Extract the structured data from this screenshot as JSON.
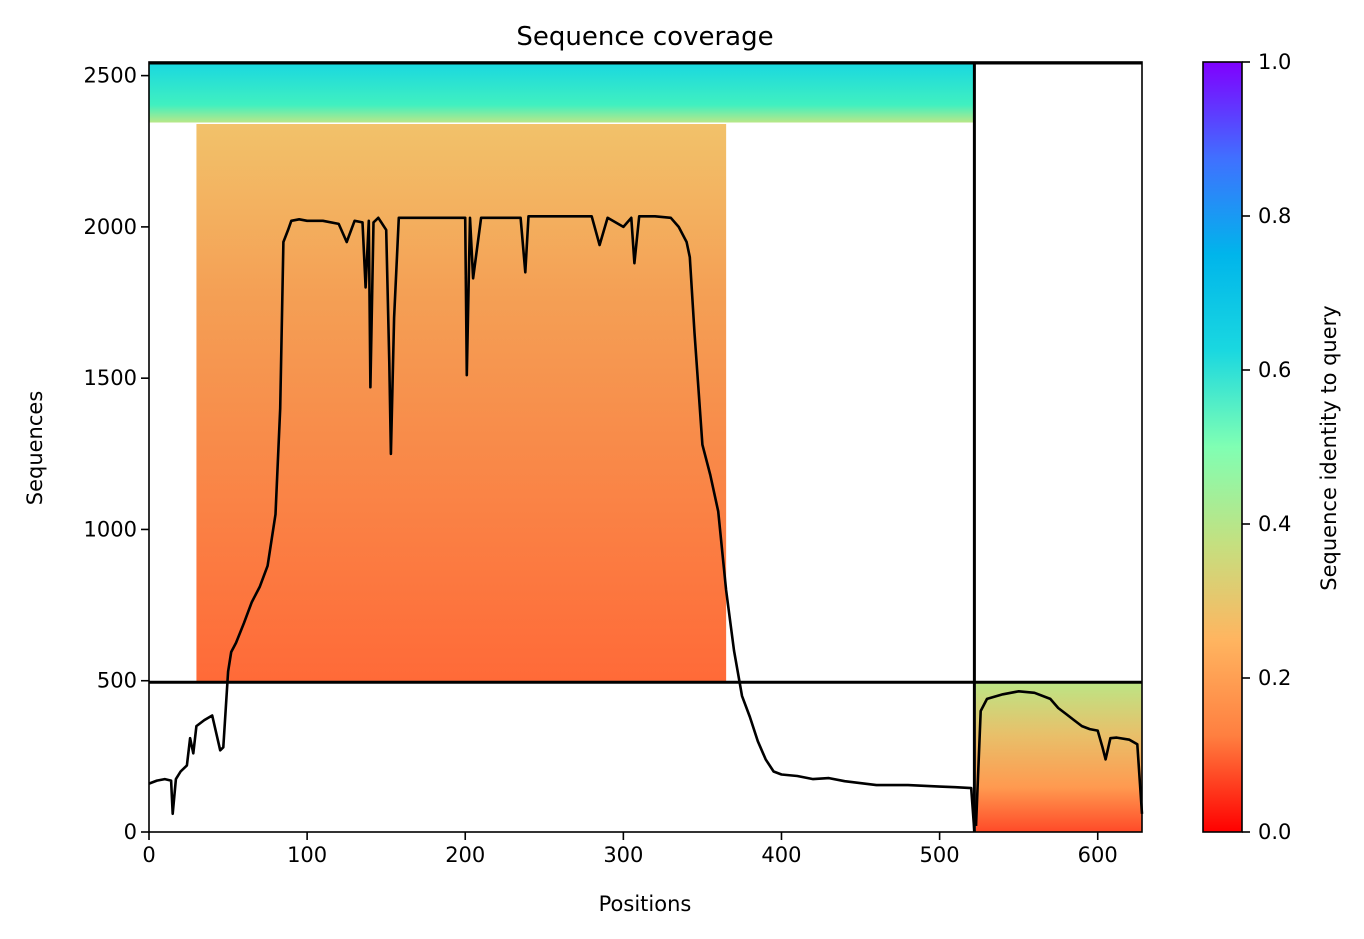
{
  "chart_data": {
    "type": "heatmap",
    "title": "Sequence coverage",
    "xlabel": "Positions",
    "ylabel": "Sequences",
    "xlim": [
      0,
      628
    ],
    "ylim": [
      0,
      2545
    ],
    "xticks": [
      0,
      100,
      200,
      300,
      400,
      500,
      600
    ],
    "yticks": [
      0,
      500,
      1000,
      1500,
      2000,
      2500
    ],
    "chain_boundary_position": 522,
    "region_boundary_sequences": 495,
    "colorbar": {
      "label": "Sequence identity to query",
      "range": [
        0,
        1
      ],
      "ticks": [
        "0.0",
        "0.2",
        "0.4",
        "0.6",
        "0.8",
        "1.0"
      ],
      "colormap": "rainbow_r",
      "colors": [
        "#ff0000",
        "#ff7f40",
        "#ffb560",
        "#c4e080",
        "#80ffb3",
        "#1ad8e0",
        "#00b5eb",
        "#4070ff",
        "#8000ff"
      ]
    },
    "coverage_blocks": [
      {
        "x_start": 0,
        "x_end": 522,
        "y_start": 2345,
        "y_end": 2540,
        "identity": 0.6
      },
      {
        "x_start": 30,
        "x_end": 365,
        "y_start": 495,
        "y_end": 2340,
        "identity": 0.2
      },
      {
        "x_start": 523,
        "x_end": 628,
        "y_start": 0,
        "y_end": 495,
        "identity": 0.3
      }
    ],
    "series": [
      {
        "x": [
          0,
          5,
          10,
          14,
          15,
          17,
          20,
          24,
          26,
          28,
          30,
          35,
          40,
          45,
          47,
          50,
          52,
          55,
          60,
          65,
          70,
          75,
          80,
          83,
          85,
          88,
          90,
          95,
          100,
          110,
          120,
          125,
          130,
          135,
          137,
          139,
          140,
          142,
          145,
          150,
          152,
          153,
          155,
          158,
          160,
          170,
          180,
          190,
          200,
          201,
          203,
          205,
          210,
          220,
          235,
          238,
          240,
          260,
          280,
          285,
          290,
          300,
          305,
          307,
          310,
          320,
          330,
          335,
          340,
          342,
          345,
          350,
          355,
          360,
          365,
          370,
          375,
          380,
          385,
          390,
          395,
          400,
          410,
          420,
          430,
          440,
          460,
          480,
          500,
          510,
          520,
          522
        ],
        "y": [
          160,
          170,
          175,
          170,
          60,
          175,
          200,
          220,
          310,
          260,
          350,
          370,
          385,
          270,
          280,
          530,
          595,
          625,
          690,
          760,
          810,
          880,
          1050,
          1400,
          1950,
          1990,
          2020,
          2025,
          2020,
          2020,
          2010,
          1950,
          2020,
          2015,
          1800,
          2020,
          1470,
          2015,
          2030,
          1990,
          1550,
          1250,
          1700,
          2030,
          2030,
          2030,
          2030,
          2030,
          2030,
          1510,
          2030,
          1830,
          2030,
          2030,
          2030,
          1850,
          2035,
          2035,
          2035,
          1940,
          2030,
          2000,
          2030,
          1880,
          2035,
          2035,
          2030,
          2000,
          1950,
          1900,
          1650,
          1280,
          1180,
          1060,
          800,
          600,
          450,
          380,
          300,
          240,
          200,
          190,
          185,
          175,
          178,
          168,
          155,
          155,
          150,
          148,
          145,
          0
        ]
      },
      {
        "x": [
          523,
          526,
          530,
          540,
          550,
          560,
          570,
          575,
          580,
          585,
          590,
          595,
          600,
          603,
          605,
          608,
          612,
          620,
          625,
          628
        ],
        "y": [
          20,
          400,
          440,
          455,
          465,
          460,
          440,
          410,
          390,
          370,
          350,
          340,
          335,
          280,
          240,
          310,
          312,
          305,
          290,
          60
        ]
      }
    ]
  }
}
